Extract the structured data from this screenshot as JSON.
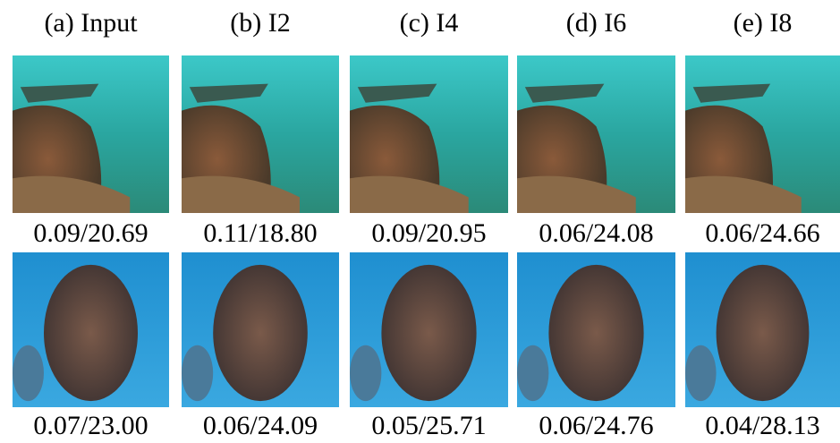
{
  "headers": [
    "(a) Input",
    "(b) I2",
    "(c) I4",
    "(d) I6",
    "(e) I8"
  ],
  "rows": [
    [
      "0.09/20.69",
      "0.11/18.80",
      "0.09/20.95",
      "0.06/24.08",
      "0.06/24.66"
    ],
    [
      "0.07/23.00",
      "0.06/24.09",
      "0.05/25.71",
      "0.06/24.76",
      "0.04/28.13"
    ]
  ]
}
